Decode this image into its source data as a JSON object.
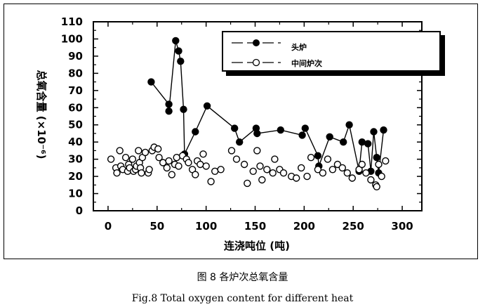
{
  "caption_cn": "图 8  各炉次总氧含量",
  "caption_en": "Fig.8 Total oxygen content for different heat",
  "chart_data": {
    "type": "line",
    "xlabel": "连浇吨位 (吨)",
    "ylabel": "总氧含量 (×10⁻⁶)",
    "xlim": [
      -15,
      320
    ],
    "ylim": [
      0,
      110
    ],
    "xticks": [
      0,
      50,
      100,
      150,
      200,
      250,
      300
    ],
    "yticks": [
      0,
      10,
      20,
      30,
      40,
      50,
      60,
      70,
      80,
      90,
      100,
      110
    ],
    "grid": false,
    "legend_position": "top-right",
    "series": [
      {
        "name": "头炉",
        "marker": "filled-circle",
        "color": "#000000",
        "x": [
          44,
          62,
          62,
          69,
          72,
          74,
          77,
          78,
          89,
          101,
          129,
          134,
          151,
          152,
          176,
          198,
          201,
          214,
          215,
          226,
          240,
          246,
          256,
          259,
          265,
          268,
          271,
          274,
          276,
          281
        ],
        "y": [
          75,
          62,
          58,
          99,
          93,
          87,
          59,
          33,
          46,
          61,
          48,
          40,
          48,
          45,
          47,
          44,
          48,
          32,
          26,
          43,
          40,
          50,
          23,
          40,
          39,
          23,
          46,
          31,
          22,
          47
        ]
      },
      {
        "name": "中间炉次",
        "marker": "open-circle",
        "color": "#000000",
        "x": [
          3,
          8,
          9,
          12,
          13,
          15,
          18,
          20,
          21,
          22,
          25,
          26,
          28,
          29,
          31,
          32,
          33,
          34,
          35,
          38,
          41,
          42,
          45,
          47,
          51,
          52,
          56,
          60,
          62,
          65,
          68,
          70,
          72,
          76,
          80,
          82,
          86,
          89,
          91,
          94,
          97,
          100,
          105,
          109,
          115,
          126,
          131,
          139,
          142,
          148,
          152,
          155,
          157,
          162,
          168,
          170,
          175,
          179,
          187,
          192,
          197,
          203,
          207,
          214,
          219,
          224,
          229,
          234,
          239,
          244,
          249,
          256,
          259,
          263,
          268,
          273,
          274,
          276,
          279,
          283
        ],
        "y": [
          30,
          25,
          22,
          35,
          26,
          24,
          31,
          23,
          27,
          25,
          30,
          23,
          24,
          26,
          35,
          28,
          25,
          22,
          31,
          34,
          22,
          24,
          35,
          37,
          36,
          31,
          28,
          25,
          29,
          21,
          27,
          31,
          26,
          32,
          30,
          28,
          24,
          21,
          29,
          27,
          33,
          26,
          17,
          23,
          24,
          35,
          30,
          27,
          16,
          23,
          35,
          26,
          18,
          24,
          22,
          30,
          24,
          22,
          20,
          19,
          25,
          20,
          31,
          24,
          22,
          30,
          24,
          27,
          25,
          22,
          19,
          24,
          27,
          22,
          18,
          15,
          14,
          27,
          20,
          29
        ]
      }
    ]
  }
}
